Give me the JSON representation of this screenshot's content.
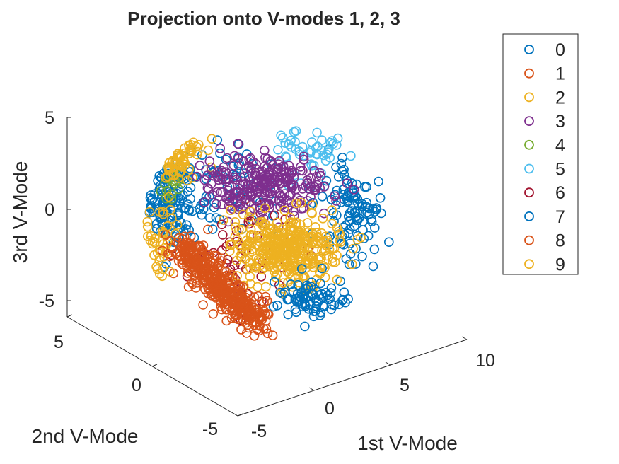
{
  "chart_data": {
    "type": "scatter",
    "title": "Projection onto V-modes 1, 2, 3",
    "xlabel": "1st V-Mode",
    "ylabel": "2nd V-Mode",
    "zlabel": "3rd V-Mode",
    "x_ticks": [
      "-5",
      "0",
      "5",
      "10"
    ],
    "y_ticks": [
      "-5",
      "0",
      "5"
    ],
    "z_ticks": [
      "-5",
      "0",
      "5"
    ],
    "xlim": [
      -5,
      10
    ],
    "ylim": [
      -5,
      5
    ],
    "zlim": [
      -5,
      5
    ],
    "grid": false,
    "legend_position": "outside-top-right",
    "marker": "open-circle",
    "series": [
      {
        "name": "0",
        "color": "#0072BD"
      },
      {
        "name": "1",
        "color": "#D95319"
      },
      {
        "name": "2",
        "color": "#EDB120"
      },
      {
        "name": "3",
        "color": "#7E2F8E"
      },
      {
        "name": "4",
        "color": "#77AC30"
      },
      {
        "name": "5",
        "color": "#4DBEEE"
      },
      {
        "name": "6",
        "color": "#A2142F"
      },
      {
        "name": "7",
        "color": "#0072BD"
      },
      {
        "name": "8",
        "color": "#D95319"
      },
      {
        "name": "9",
        "color": "#EDB120"
      }
    ]
  }
}
